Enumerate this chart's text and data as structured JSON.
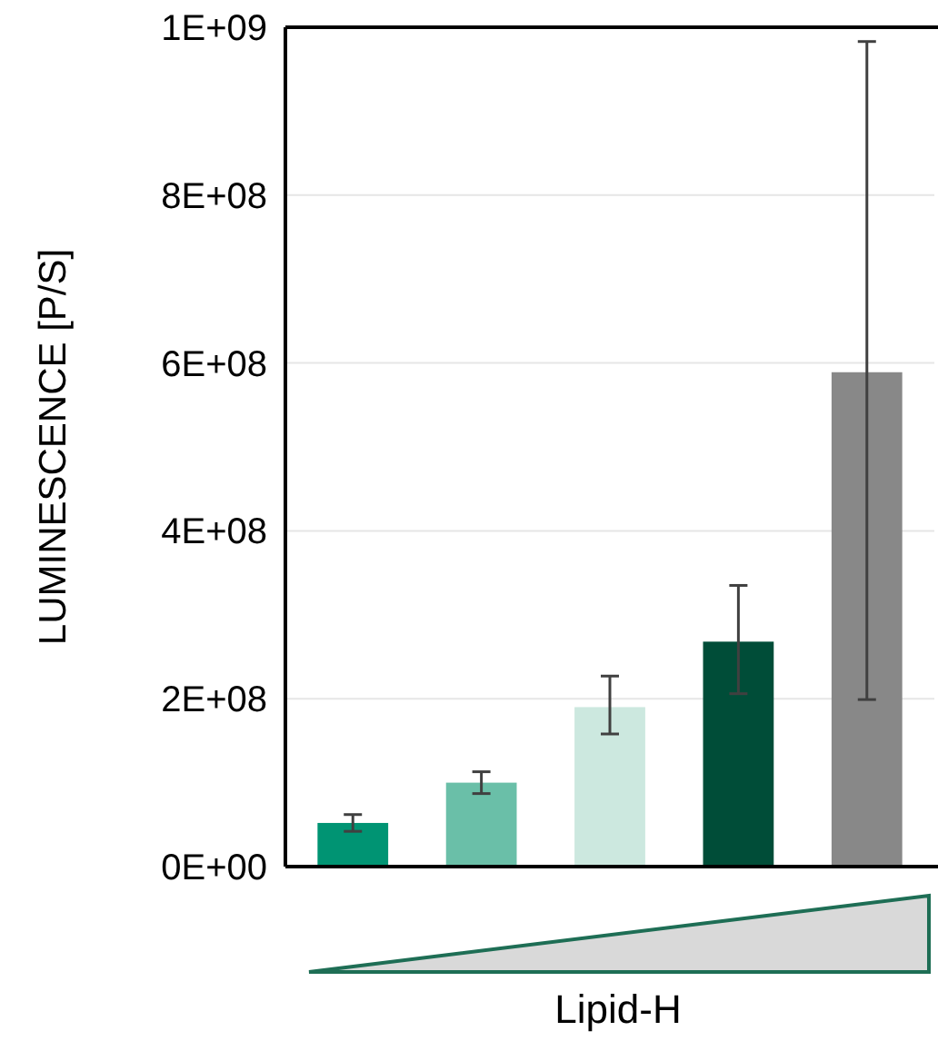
{
  "chart_data": {
    "type": "bar",
    "ylabel": "LUMINESCENCE [P/S]",
    "xlabel": "Lipid-H",
    "categories": [
      null,
      null,
      null,
      null,
      null
    ],
    "values": [
      52000000,
      100000000,
      190000000,
      268000000,
      589000000
    ],
    "colors": [
      "#009473",
      "#6abfa8",
      "#cce8df",
      "#004d38",
      "#888888"
    ],
    "errors": [
      10000000,
      13000000,
      [
        158000000,
        227000000
      ],
      [
        206000000,
        335000000
      ],
      [
        199000000,
        983000000
      ]
    ],
    "ylim": [
      0,
      1000000000
    ],
    "yticks": [
      {
        "value": 0,
        "label": "0E+00"
      },
      {
        "value": 200000000,
        "label": "2E+08"
      },
      {
        "value": 400000000,
        "label": "4E+08"
      },
      {
        "value": 600000000,
        "label": "6E+08"
      },
      {
        "value": 800000000,
        "label": "8E+08"
      },
      {
        "value": 1000000000,
        "label": "1E+09"
      }
    ],
    "grid": "y"
  }
}
